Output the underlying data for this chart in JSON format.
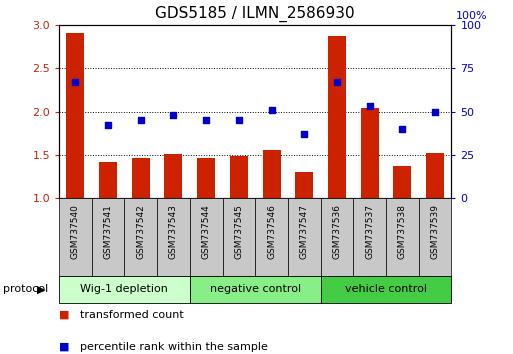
{
  "title": "GDS5185 / ILMN_2586930",
  "samples": [
    "GSM737540",
    "GSM737541",
    "GSM737542",
    "GSM737543",
    "GSM737544",
    "GSM737545",
    "GSM737546",
    "GSM737547",
    "GSM737536",
    "GSM737537",
    "GSM737538",
    "GSM737539"
  ],
  "transformed_count": [
    2.9,
    1.42,
    1.46,
    1.51,
    1.46,
    1.49,
    1.56,
    1.3,
    2.87,
    2.04,
    1.37,
    1.52
  ],
  "percentile_rank": [
    67,
    42,
    45,
    48,
    45,
    45,
    51,
    37,
    67,
    53,
    40,
    50
  ],
  "ylim_left": [
    1,
    3
  ],
  "ylim_right": [
    0,
    100
  ],
  "yticks_left": [
    1.0,
    1.5,
    2.0,
    2.5,
    3.0
  ],
  "yticks_right": [
    0,
    25,
    50,
    75,
    100
  ],
  "groups": [
    {
      "label": "Wig-1 depletion",
      "start": 0,
      "end": 3,
      "color": "#ccffcc"
    },
    {
      "label": "negative control",
      "start": 4,
      "end": 7,
      "color": "#88ee88"
    },
    {
      "label": "vehicle control",
      "start": 8,
      "end": 11,
      "color": "#44cc44"
    }
  ],
  "bar_color": "#cc2200",
  "dot_color": "#0000cc",
  "bar_bottom": 1.0,
  "legend_labels": [
    "transformed count",
    "percentile rank within the sample"
  ],
  "legend_colors": [
    "#cc2200",
    "#0000cc"
  ],
  "protocol_label": "protocol",
  "tick_color_left": "#cc2200",
  "tick_color_right": "#0000cc",
  "title_fontsize": 11,
  "right_ylabel": "100%"
}
